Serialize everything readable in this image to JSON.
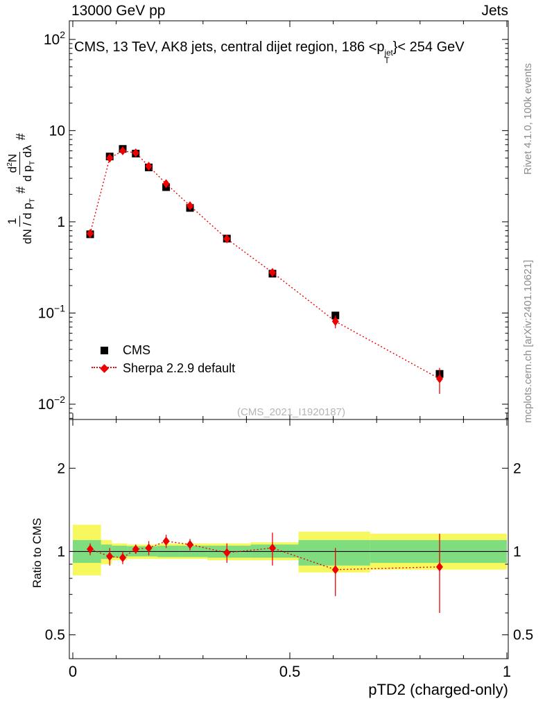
{
  "header": {
    "left": "13000 GeV pp",
    "right": "Jets"
  },
  "panel_title": "CMS, 13 TeV, AK8 jets, central dijet region, 186 <p_{T}^{jet}}< 254 GeV",
  "legend": {
    "cms": "CMS",
    "sherpa": "Sherpa 2.2.9 default"
  },
  "watermark": "(CMS_2021_I1920187)",
  "side_notes": {
    "rivet": "Rivet 4.1.0, 100k events",
    "mcplots": "mcplots.cern.ch [arXiv:2401.10621]"
  },
  "axis_labels": {
    "hash": "#",
    "frac1_num": "1",
    "frac1_den": "dN / d p_{T}",
    "frac2_num": "d^{2}N",
    "frac2_den": "d p_{T} dλ",
    "ratio_y": "Ratio to CMS",
    "x": "pTD2 (charged-only)"
  },
  "chart_data": {
    "type": "scatter",
    "title": "CMS, 13 TeV, AK8 jets, central dijet region, 186 < pT^jet < 254 GeV",
    "xlabel": "pTD2 (charged-only)",
    "xlim": [
      0,
      1
    ],
    "x_ticks": [
      0,
      0.5,
      1
    ],
    "x_minor_step": 0.1,
    "main_panel": {
      "scale": "log",
      "ylim": [
        0.0068,
        160
      ],
      "y_ticks": [
        100,
        10,
        1,
        0.1,
        0.01
      ],
      "series": [
        {
          "name": "CMS",
          "marker": "square",
          "color": "#000000",
          "line": "none",
          "x": [
            0.04,
            0.085,
            0.115,
            0.145,
            0.175,
            0.215,
            0.27,
            0.355,
            0.46,
            0.605,
            0.845
          ],
          "y": [
            0.73,
            5.2,
            6.3,
            5.6,
            3.95,
            2.4,
            1.42,
            0.655,
            0.27,
            0.094,
            0.0215
          ],
          "yerr": [
            0.03,
            0.15,
            0.18,
            0.15,
            0.1,
            0.07,
            0.05,
            0.02,
            0.012,
            0.005,
            0.0018
          ]
        },
        {
          "name": "Sherpa 2.2.9 default",
          "marker": "diamond",
          "color": "#ee0000",
          "line": "dotted",
          "x": [
            0.04,
            0.085,
            0.115,
            0.145,
            0.175,
            0.215,
            0.27,
            0.355,
            0.46,
            0.605,
            0.845
          ],
          "y": [
            0.745,
            5.0,
            6.0,
            5.7,
            4.07,
            2.62,
            1.5,
            0.65,
            0.278,
            0.081,
            0.019
          ],
          "yerr": [
            0.02,
            0.12,
            0.15,
            0.12,
            0.1,
            0.07,
            0.05,
            0.025,
            0.02,
            0.013,
            0.006
          ]
        }
      ]
    },
    "ratio_panel": {
      "scale": "log",
      "ylim": [
        0.41,
        3.0
      ],
      "y_ticks": [
        0.5,
        1,
        2
      ],
      "y_minor_ticks": [
        0.6,
        0.7,
        0.8,
        0.9
      ],
      "reference_line": 1,
      "ratio": {
        "name": "Sherpa 2.2.9 default / CMS",
        "marker": "diamond",
        "color": "#ee0000",
        "line": "dotted",
        "x": [
          0.04,
          0.085,
          0.115,
          0.145,
          0.175,
          0.215,
          0.27,
          0.355,
          0.46,
          0.605,
          0.845
        ],
        "y": [
          1.02,
          0.96,
          0.95,
          1.02,
          1.03,
          1.09,
          1.06,
          0.99,
          1.03,
          0.86,
          0.88
        ],
        "yerr": [
          0.05,
          0.07,
          0.05,
          0.04,
          0.06,
          0.06,
          0.05,
          0.08,
          0.14,
          0.17,
          0.28
        ]
      },
      "bands": {
        "yellow_color": "#f7f75e",
        "green_color": "#7fdc7f",
        "yellow": [
          [
            0,
            0.065,
            0.82,
            1.25
          ],
          [
            0.065,
            0.09,
            0.9,
            1.1
          ],
          [
            0.09,
            0.125,
            0.93,
            1.07
          ],
          [
            0.125,
            0.155,
            0.94,
            1.06
          ],
          [
            0.155,
            0.195,
            0.94,
            1.06
          ],
          [
            0.195,
            0.245,
            0.94,
            1.07
          ],
          [
            0.245,
            0.31,
            0.94,
            1.07
          ],
          [
            0.31,
            0.41,
            0.93,
            1.07
          ],
          [
            0.41,
            0.52,
            0.93,
            1.08
          ],
          [
            0.52,
            0.685,
            0.84,
            1.18
          ],
          [
            0.685,
            1.0,
            0.86,
            1.16
          ]
        ],
        "green": [
          [
            0,
            0.065,
            0.91,
            1.1
          ],
          [
            0.065,
            0.09,
            0.94,
            1.06
          ],
          [
            0.09,
            0.125,
            0.95,
            1.05
          ],
          [
            0.125,
            0.155,
            0.96,
            1.045
          ],
          [
            0.155,
            0.195,
            0.96,
            1.045
          ],
          [
            0.195,
            0.245,
            0.955,
            1.05
          ],
          [
            0.245,
            0.31,
            0.955,
            1.05
          ],
          [
            0.31,
            0.41,
            0.95,
            1.05
          ],
          [
            0.41,
            0.52,
            0.95,
            1.06
          ],
          [
            0.52,
            0.685,
            0.89,
            1.1
          ],
          [
            0.685,
            1.0,
            0.91,
            1.1
          ]
        ]
      }
    }
  }
}
